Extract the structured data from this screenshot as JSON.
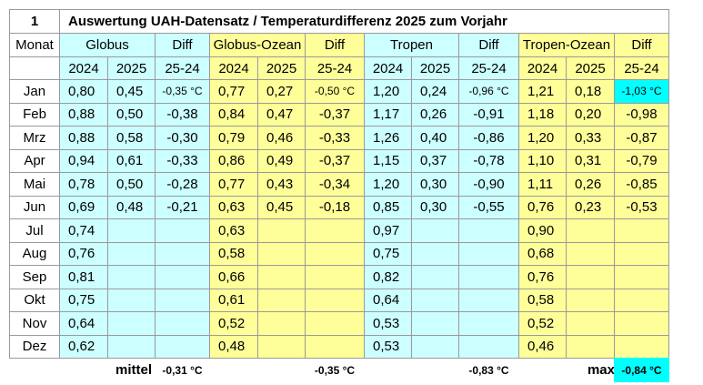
{
  "header": {
    "number": "1",
    "title": "Auswertung UAH-Datensatz / Temperaturdifferenz 2025 zum Vorjahr"
  },
  "table": {
    "month_header": "Monat",
    "groups": [
      {
        "name": "Globus",
        "diff": "Diff",
        "cols": [
          "2024",
          "2025",
          "25-24"
        ]
      },
      {
        "name": "Globus-Ozean",
        "diff": "Diff",
        "cols": [
          "2024",
          "2025",
          "25-24"
        ]
      },
      {
        "name": "Tropen",
        "diff": "Diff",
        "cols": [
          "2024",
          "2025",
          "25-24"
        ]
      },
      {
        "name": "Tropen-Ozean",
        "diff": "Diff",
        "cols": [
          "2024",
          "2025",
          "25-24"
        ]
      }
    ],
    "rows": [
      [
        "Jan",
        "0,80",
        "0,45",
        "-0,35 °C",
        "0,77",
        "0,27",
        "-0,50 °C",
        "1,20",
        "0,24",
        "-0,96 °C",
        "1,21",
        "0,18",
        "-1,03 °C"
      ],
      [
        "Feb",
        "0,88",
        "0,50",
        "-0,38",
        "0,84",
        "0,47",
        "-0,37",
        "1,17",
        "0,26",
        "-0,91",
        "1,18",
        "0,20",
        "-0,98"
      ],
      [
        "Mrz",
        "0,88",
        "0,58",
        "-0,30",
        "0,79",
        "0,46",
        "-0,33",
        "1,26",
        "0,40",
        "-0,86",
        "1,20",
        "0,33",
        "-0,87"
      ],
      [
        "Apr",
        "0,94",
        "0,61",
        "-0,33",
        "0,86",
        "0,49",
        "-0,37",
        "1,15",
        "0,37",
        "-0,78",
        "1,10",
        "0,31",
        "-0,79"
      ],
      [
        "Mai",
        "0,78",
        "0,50",
        "-0,28",
        "0,77",
        "0,43",
        "-0,34",
        "1,20",
        "0,30",
        "-0,90",
        "1,11",
        "0,26",
        "-0,85"
      ],
      [
        "Jun",
        "0,69",
        "0,48",
        "-0,21",
        "0,63",
        "0,45",
        "-0,18",
        "0,85",
        "0,30",
        "-0,55",
        "0,76",
        "0,23",
        "-0,53"
      ],
      [
        "Jul",
        "0,74",
        null,
        null,
        "0,63",
        null,
        null,
        "0,97",
        null,
        null,
        "0,90",
        null,
        null
      ],
      [
        "Aug",
        "0,76",
        null,
        null,
        "0,58",
        null,
        null,
        "0,75",
        null,
        null,
        "0,68",
        null,
        null
      ],
      [
        "Sep",
        "0,81",
        null,
        null,
        "0,66",
        null,
        null,
        "0,82",
        null,
        null,
        "0,76",
        null,
        null
      ],
      [
        "Okt",
        "0,75",
        null,
        null,
        "0,61",
        null,
        null,
        "0,64",
        null,
        null,
        "0,58",
        null,
        null
      ],
      [
        "Nov",
        "0,64",
        null,
        null,
        "0,52",
        null,
        null,
        "0,53",
        null,
        null,
        "0,52",
        null,
        null
      ],
      [
        "Dez",
        "0,62",
        null,
        null,
        "0,48",
        null,
        null,
        "0,53",
        null,
        null,
        "0,46",
        null,
        null
      ]
    ],
    "footer": {
      "mean_label": "mittel",
      "means": [
        "-0,31 °C",
        "-0,35 °C",
        "-0,83 °C"
      ],
      "max_label": "max",
      "max": "-0,84 °C"
    }
  }
}
